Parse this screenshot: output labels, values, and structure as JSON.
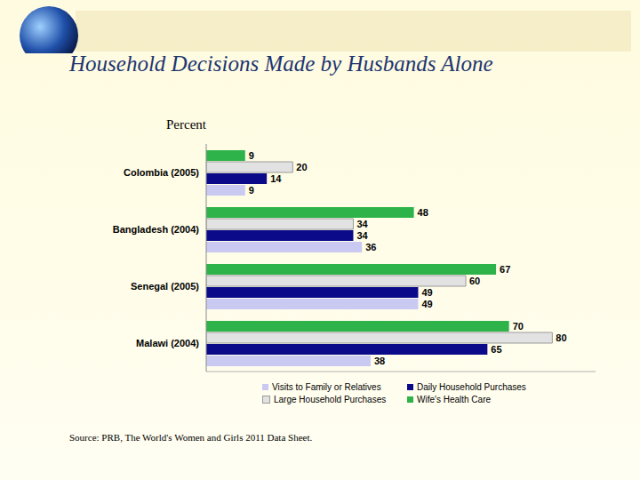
{
  "chart_data": {
    "type": "bar",
    "title": "Household Decisions Made by Husbands Alone",
    "xlabel": "Percent",
    "source": "Source: PRB, The World's Women and Girls 2011 Data Sheet.",
    "orientation": "horizontal",
    "data_labels": true,
    "tick_labels": "y",
    "grid": false,
    "legend": "bottom",
    "xlim": [
      0,
      90
    ],
    "categories": [
      "Colombia (2005)",
      "Bangladesh (2004)",
      "Senegal (2005)",
      "Malawi (2004)"
    ],
    "series": [
      {
        "name": "Wife's Health Care",
        "color": "#2db34a",
        "values": [
          9,
          48,
          67,
          70
        ]
      },
      {
        "name": "Large Household Purchases",
        "color": "#e2e2e2",
        "values": [
          20,
          34,
          60,
          80
        ]
      },
      {
        "name": "Daily Household Purchases",
        "color": "#0b0b8a",
        "values": [
          14,
          34,
          49,
          65
        ]
      },
      {
        "name": "Visits to Family or Relatives",
        "color": "#c9c9f2",
        "values": [
          9,
          36,
          49,
          38
        ]
      }
    ]
  }
}
